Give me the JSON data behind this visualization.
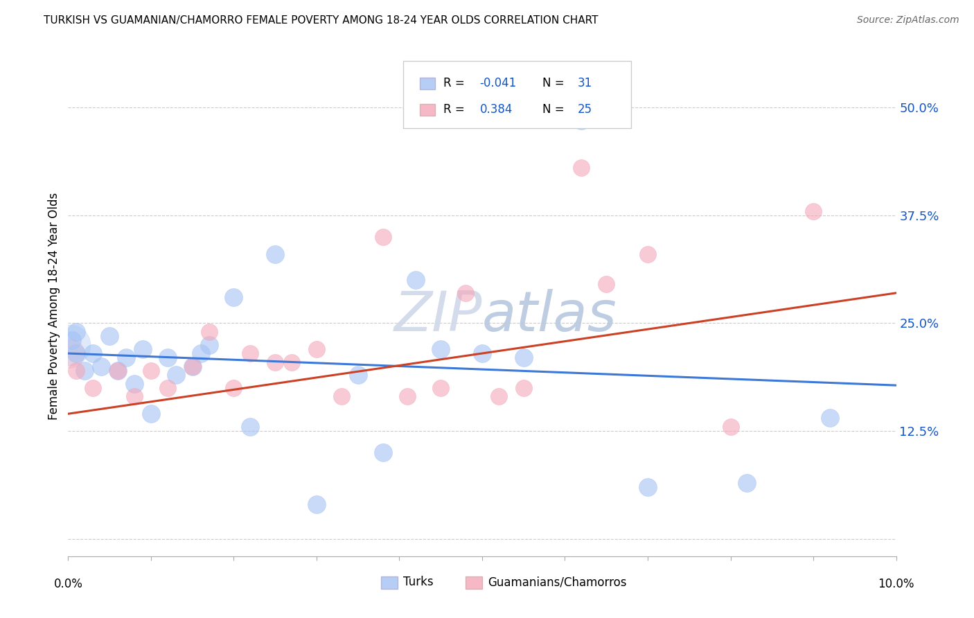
{
  "title": "TURKISH VS GUAMANIAN/CHAMORRO FEMALE POVERTY AMONG 18-24 YEAR OLDS CORRELATION CHART",
  "source": "Source: ZipAtlas.com",
  "ylabel": "Female Poverty Among 18-24 Year Olds",
  "ytick_vals": [
    0.0,
    0.125,
    0.25,
    0.375,
    0.5
  ],
  "ytick_labels": [
    "",
    "12.5%",
    "25.0%",
    "37.5%",
    "50.0%"
  ],
  "xlim": [
    0.0,
    0.1
  ],
  "ylim": [
    -0.02,
    0.56
  ],
  "turks_color": "#a4c2f4",
  "guam_color": "#f4a7b9",
  "trend_turks_color": "#3c78d8",
  "trend_guam_color": "#cc4125",
  "watermark_color": "#d0d8e8",
  "background_color": "#ffffff",
  "grid_color": "#cccccc",
  "legend_R_color": "#1155cc",
  "turks_x": [
    0.0005,
    0.001,
    0.001,
    0.002,
    0.003,
    0.004,
    0.005,
    0.006,
    0.007,
    0.008,
    0.009,
    0.01,
    0.012,
    0.013,
    0.015,
    0.016,
    0.017,
    0.02,
    0.022,
    0.025,
    0.03,
    0.035,
    0.038,
    0.042,
    0.045,
    0.05,
    0.055,
    0.062,
    0.07,
    0.082,
    0.092
  ],
  "turks_y": [
    0.23,
    0.215,
    0.24,
    0.195,
    0.215,
    0.2,
    0.235,
    0.195,
    0.21,
    0.18,
    0.22,
    0.145,
    0.21,
    0.19,
    0.2,
    0.215,
    0.225,
    0.28,
    0.13,
    0.33,
    0.04,
    0.19,
    0.1,
    0.3,
    0.22,
    0.215,
    0.21,
    0.485,
    0.06,
    0.065,
    0.14
  ],
  "guam_x": [
    0.001,
    0.003,
    0.006,
    0.008,
    0.01,
    0.012,
    0.015,
    0.017,
    0.02,
    0.022,
    0.025,
    0.027,
    0.03,
    0.033,
    0.038,
    0.041,
    0.045,
    0.048,
    0.052,
    0.055,
    0.062,
    0.065,
    0.07,
    0.08,
    0.09
  ],
  "guam_y": [
    0.195,
    0.175,
    0.195,
    0.165,
    0.195,
    0.175,
    0.2,
    0.24,
    0.175,
    0.215,
    0.205,
    0.205,
    0.22,
    0.165,
    0.35,
    0.165,
    0.175,
    0.285,
    0.165,
    0.175,
    0.43,
    0.295,
    0.33,
    0.13,
    0.38
  ],
  "trend_turks_x0": 0.0,
  "trend_turks_y0": 0.215,
  "trend_turks_x1": 0.1,
  "trend_turks_y1": 0.178,
  "trend_guam_x0": 0.0,
  "trend_guam_y0": 0.145,
  "trend_guam_x1": 0.1,
  "trend_guam_y1": 0.285
}
